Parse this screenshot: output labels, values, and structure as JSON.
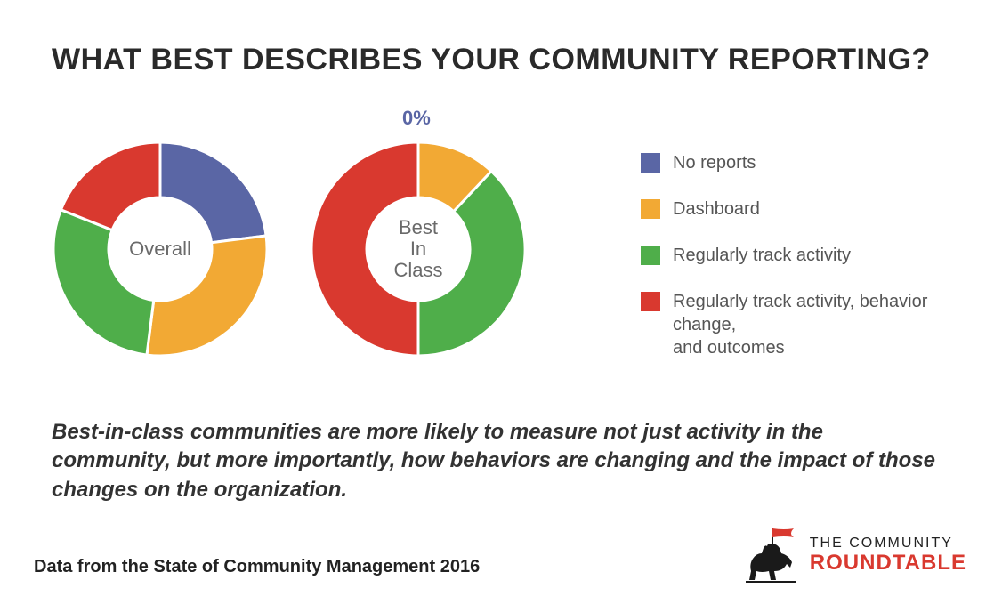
{
  "title": "WHAT BEST DESCRIBES YOUR COMMUNITY REPORTING?",
  "colors": {
    "no_reports": "#5a66a5",
    "dashboard": "#f2a934",
    "track_activity": "#4fae4a",
    "track_activity_behavior": "#d9392f"
  },
  "donut": {
    "outer_radius": 120,
    "inner_radius": 58,
    "background": "#ffffff",
    "gap_color": "#ffffff",
    "gap_width": 3
  },
  "charts": [
    {
      "center_label": "Overall",
      "slices": [
        {
          "key": "no_reports",
          "value": 23,
          "label": "23%"
        },
        {
          "key": "dashboard",
          "value": 29,
          "label": "29%"
        },
        {
          "key": "track_activity",
          "value": 29,
          "label": "29%"
        },
        {
          "key": "track_activity_behavior",
          "value": 19,
          "label": "19%"
        }
      ]
    },
    {
      "center_label": "Best\nIn\nClass",
      "external_top_label": "0%",
      "slices": [
        {
          "key": "dashboard",
          "value": 12,
          "label": "12%"
        },
        {
          "key": "track_activity",
          "value": 38,
          "label": "38%"
        },
        {
          "key": "track_activity_behavior",
          "value": 50,
          "label": "50%"
        }
      ]
    }
  ],
  "legend": [
    {
      "key": "no_reports",
      "label": "No reports"
    },
    {
      "key": "dashboard",
      "label": "Dashboard"
    },
    {
      "key": "track_activity",
      "label": "Regularly track activity"
    },
    {
      "key": "track_activity_behavior",
      "label": "Regularly track activity, behavior change,\nand outcomes"
    }
  ],
  "summary": "Best-in-class communities are more likely to measure not just activity in the community, but more importantly, how behaviors are changing and the impact of those changes on the organization.",
  "source": "Data from the State of Community Management 2016",
  "logo": {
    "line1": "THE COMMUNITY",
    "line2": "ROUNDTABLE",
    "line2_color": "#d9392f",
    "horse_color": "#1a1a1a",
    "flag_color": "#d9392f"
  }
}
